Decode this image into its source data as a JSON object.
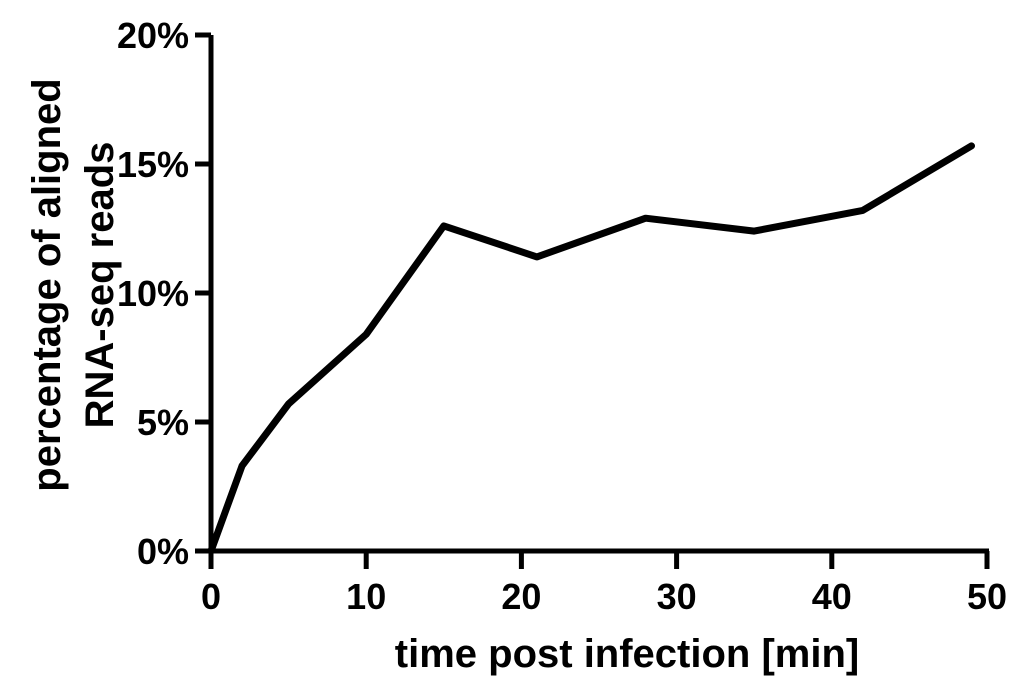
{
  "chart_data": {
    "type": "line",
    "title": "",
    "xlabel": "time post infection [min]",
    "ylabel_lines": [
      "percentage of aligned",
      "RNA-seq reads"
    ],
    "xlim": [
      0,
      50
    ],
    "ylim": [
      0,
      20
    ],
    "x_ticks": [
      0,
      10,
      20,
      30,
      40,
      50
    ],
    "x_tick_labels": [
      "0",
      "10",
      "20",
      "30",
      "40",
      "50"
    ],
    "y_ticks": [
      0,
      5,
      10,
      15,
      20
    ],
    "y_tick_labels": [
      "0%",
      "5%",
      "10%",
      "15%",
      "20%"
    ],
    "grid": false,
    "legend": "none",
    "series": [
      {
        "x": [
          0,
          2,
          5,
          10,
          15,
          21,
          28,
          35,
          42,
          49
        ],
        "y": [
          0,
          3.3,
          5.7,
          8.4,
          12.6,
          11.4,
          12.9,
          12.4,
          13.2,
          15.7
        ],
        "color": "#000000"
      }
    ]
  }
}
